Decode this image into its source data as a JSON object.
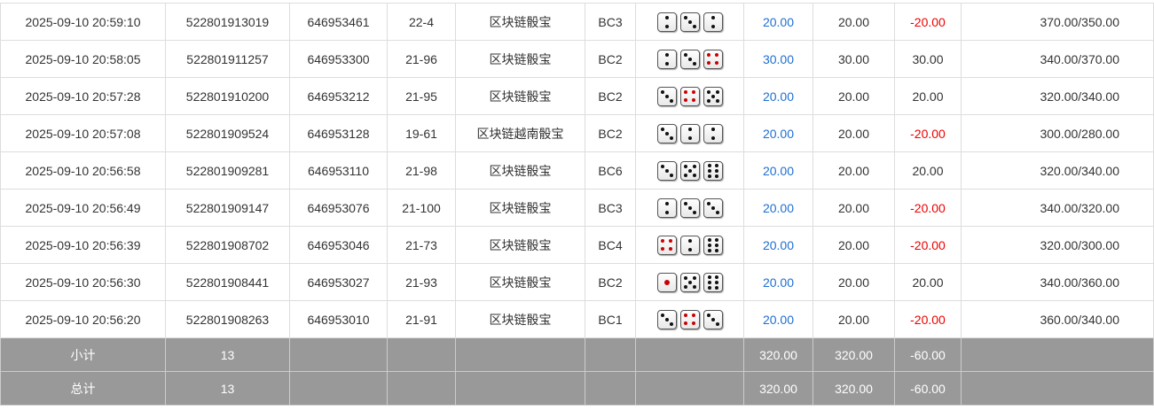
{
  "rows": [
    {
      "time": "2025-09-10 20:59:10",
      "order": "522801913019",
      "issue": "646953461",
      "table": "22-4",
      "game": "区块链骰宝",
      "bet": "BC3",
      "dice": [
        2,
        3,
        2
      ],
      "stake": "20.00",
      "valid": "20.00",
      "win": "-20.00",
      "balance": "370.00/350.00"
    },
    {
      "time": "2025-09-10 20:58:05",
      "order": "522801911257",
      "issue": "646953300",
      "table": "21-96",
      "game": "区块链骰宝",
      "bet": "BC2",
      "dice": [
        2,
        3,
        4
      ],
      "stake": "30.00",
      "valid": "30.00",
      "win": "30.00",
      "balance": "340.00/370.00"
    },
    {
      "time": "2025-09-10 20:57:28",
      "order": "522801910200",
      "issue": "646953212",
      "table": "21-95",
      "game": "区块链骰宝",
      "bet": "BC2",
      "dice": [
        3,
        4,
        5
      ],
      "stake": "20.00",
      "valid": "20.00",
      "win": "20.00",
      "balance": "320.00/340.00"
    },
    {
      "time": "2025-09-10 20:57:08",
      "order": "522801909524",
      "issue": "646953128",
      "table": "19-61",
      "game": "区块链越南骰宝",
      "bet": "BC2",
      "dice": [
        3,
        2,
        2
      ],
      "stake": "20.00",
      "valid": "20.00",
      "win": "-20.00",
      "balance": "300.00/280.00"
    },
    {
      "time": "2025-09-10 20:56:58",
      "order": "522801909281",
      "issue": "646953110",
      "table": "21-98",
      "game": "区块链骰宝",
      "bet": "BC6",
      "dice": [
        3,
        5,
        6
      ],
      "stake": "20.00",
      "valid": "20.00",
      "win": "20.00",
      "balance": "320.00/340.00"
    },
    {
      "time": "2025-09-10 20:56:49",
      "order": "522801909147",
      "issue": "646953076",
      "table": "21-100",
      "game": "区块链骰宝",
      "bet": "BC3",
      "dice": [
        2,
        3,
        3
      ],
      "stake": "20.00",
      "valid": "20.00",
      "win": "-20.00",
      "balance": "340.00/320.00"
    },
    {
      "time": "2025-09-10 20:56:39",
      "order": "522801908702",
      "issue": "646953046",
      "table": "21-73",
      "game": "区块链骰宝",
      "bet": "BC4",
      "dice": [
        4,
        2,
        6
      ],
      "stake": "20.00",
      "valid": "20.00",
      "win": "-20.00",
      "balance": "320.00/300.00"
    },
    {
      "time": "2025-09-10 20:56:30",
      "order": "522801908441",
      "issue": "646953027",
      "table": "21-93",
      "game": "区块链骰宝",
      "bet": "BC2",
      "dice": [
        1,
        5,
        6
      ],
      "stake": "20.00",
      "valid": "20.00",
      "win": "20.00",
      "balance": "340.00/360.00"
    },
    {
      "time": "2025-09-10 20:56:20",
      "order": "522801908263",
      "issue": "646953010",
      "table": "21-91",
      "game": "区块链骰宝",
      "bet": "BC1",
      "dice": [
        3,
        4,
        3
      ],
      "stake": "20.00",
      "valid": "20.00",
      "win": "-20.00",
      "balance": "360.00/340.00"
    }
  ],
  "subtotal": {
    "label": "小计",
    "count": "13",
    "stake": "320.00",
    "valid": "320.00",
    "win": "-60.00"
  },
  "total": {
    "label": "总计",
    "count": "13",
    "stake": "320.00",
    "valid": "320.00",
    "win": "-60.00"
  },
  "colors": {
    "stake": "#1d6fd1",
    "negative": "#e00000",
    "footer": "#999999"
  }
}
